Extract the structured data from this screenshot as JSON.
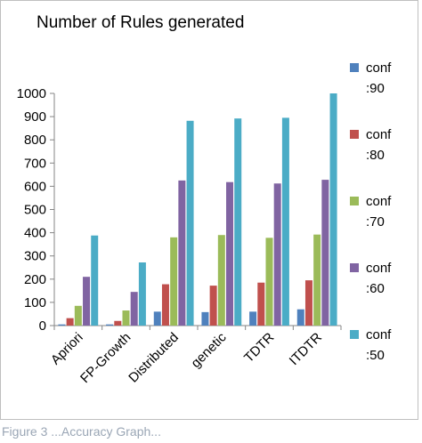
{
  "chart_data": {
    "type": "bar",
    "title": "Number of Rules generated",
    "xlabel": "",
    "ylabel": "",
    "ylim": [
      0,
      1000
    ],
    "yticks": [
      0,
      100,
      200,
      300,
      400,
      500,
      600,
      700,
      800,
      900,
      1000
    ],
    "grid": false,
    "legend_position": "right",
    "categories": [
      "Apriori",
      "FP-Growth",
      "Distributed",
      "genetic",
      "TDTR",
      "ITDTR"
    ],
    "series": [
      {
        "name": "conf :90",
        "color": "#4f81bd",
        "values": [
          5,
          5,
          60,
          58,
          60,
          70
        ]
      },
      {
        "name": "conf :80",
        "color": "#c0504d",
        "values": [
          32,
          20,
          178,
          172,
          185,
          195
        ]
      },
      {
        "name": "conf :70",
        "color": "#9bbb59",
        "values": [
          85,
          65,
          380,
          390,
          378,
          392
        ]
      },
      {
        "name": "conf :60",
        "color": "#8064a2",
        "values": [
          210,
          145,
          625,
          618,
          612,
          628
        ]
      },
      {
        "name": "conf :50",
        "color": "#4bacc6",
        "values": [
          388,
          272,
          882,
          892,
          895,
          1000
        ]
      }
    ]
  },
  "caption": "Figure 3    ...Accuracy Graph..."
}
